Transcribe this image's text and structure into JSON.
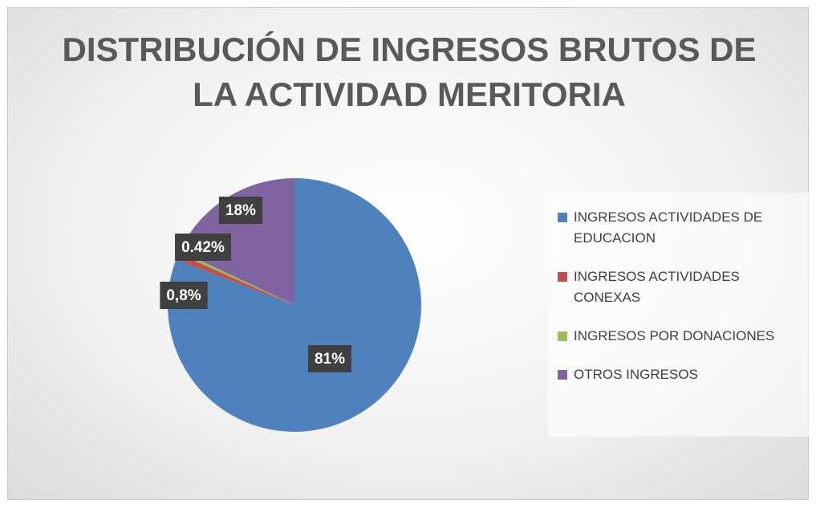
{
  "chart_data": {
    "type": "pie",
    "title": "DISTRIBUCIÓN DE INGRESOS BRUTOS DE LA ACTIVIDAD MERITORIA",
    "categories": [
      "INGRESOS ACTIVIDADES DE EDUCACION",
      "INGRESOS ACTIVIDADES CONEXAS",
      "INGRESOS POR DONACIONES",
      "OTROS INGRESOS"
    ],
    "values": [
      81,
      0.8,
      0.42,
      18
    ],
    "value_labels": [
      "81%",
      "0,8%",
      "0.42%",
      "18%"
    ],
    "colors": [
      "#4f81bd",
      "#c0504d",
      "#9bbb59",
      "#8064a2"
    ],
    "legend": "right"
  }
}
